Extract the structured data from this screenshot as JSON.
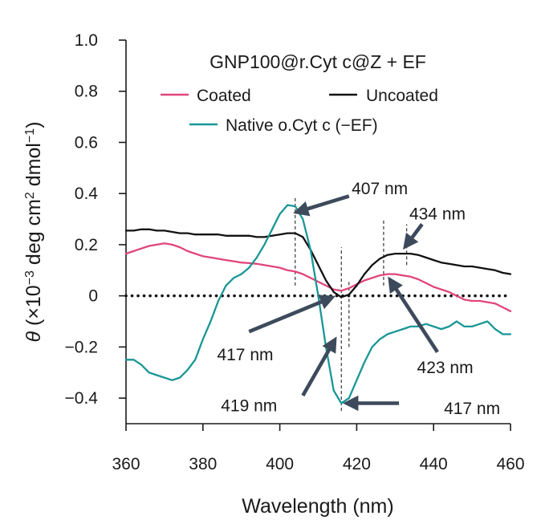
{
  "chart_data": {
    "type": "line",
    "title": "GNP100@r.Cyt c@Z + EF",
    "xlabel": "Wavelength (nm)",
    "ylabel": "θ (×10−3 deg cm2 dmol−1)",
    "ylabel_parts": {
      "theta": "θ",
      "pre": " (×10",
      "exp1": "−3",
      "mid": " deg cm",
      "exp2": "2",
      "post": " dmol",
      "exp3": "−1",
      "close": ")"
    },
    "xlim": [
      360,
      460
    ],
    "ylim": [
      -0.5,
      1.0
    ],
    "xticks": [
      {
        "value": 360,
        "label": "360"
      },
      {
        "value": 380,
        "label": "380"
      },
      {
        "value": 400,
        "label": "400"
      },
      {
        "value": 420,
        "label": "420"
      },
      {
        "value": 440,
        "label": "440"
      },
      {
        "value": 460,
        "label": "460"
      }
    ],
    "yticks": [
      {
        "value": 1.0,
        "label": "1.0"
      },
      {
        "value": 0.8,
        "label": "0.8"
      },
      {
        "value": 0.6,
        "label": "0.6"
      },
      {
        "value": 0.4,
        "label": "0.4"
      },
      {
        "value": 0.2,
        "label": "0.2"
      },
      {
        "value": 0,
        "label": "0"
      },
      {
        "value": -0.2,
        "label": "−0.2"
      },
      {
        "value": -0.4,
        "label": "−0.4"
      }
    ],
    "zero_line": true,
    "series": [
      {
        "name": "Coated",
        "color": "#e0457b",
        "x": [
          360,
          362,
          364,
          366,
          368,
          370,
          372,
          374,
          376,
          378,
          380,
          382,
          384,
          386,
          388,
          390,
          392,
          394,
          396,
          398,
          400,
          402,
          404,
          406,
          408,
          410,
          412,
          414,
          416,
          418,
          420,
          422,
          424,
          426,
          428,
          430,
          432,
          434,
          436,
          438,
          440,
          442,
          444,
          446,
          448,
          450,
          452,
          454,
          456,
          458,
          460
        ],
        "y": [
          0.165,
          0.175,
          0.185,
          0.195,
          0.2,
          0.205,
          0.2,
          0.19,
          0.175,
          0.165,
          0.155,
          0.15,
          0.145,
          0.14,
          0.135,
          0.13,
          0.128,
          0.125,
          0.12,
          0.115,
          0.11,
          0.1,
          0.095,
          0.085,
          0.07,
          0.055,
          0.04,
          0.025,
          0.02,
          0.03,
          0.045,
          0.06,
          0.07,
          0.08,
          0.085,
          0.085,
          0.08,
          0.075,
          0.065,
          0.05,
          0.035,
          0.025,
          0.015,
          0.0,
          -0.015,
          -0.02,
          -0.02,
          -0.025,
          -0.03,
          -0.045,
          -0.06
        ]
      },
      {
        "name": "Uncoated",
        "color": "#111111",
        "x": [
          360,
          362,
          364,
          366,
          368,
          370,
          372,
          374,
          376,
          378,
          380,
          382,
          384,
          386,
          388,
          390,
          392,
          394,
          396,
          398,
          400,
          402,
          404,
          406,
          408,
          410,
          412,
          414,
          416,
          418,
          420,
          422,
          424,
          426,
          428,
          430,
          432,
          434,
          436,
          438,
          440,
          442,
          444,
          446,
          448,
          450,
          452,
          454,
          456,
          458,
          460
        ],
        "y": [
          0.255,
          0.255,
          0.26,
          0.26,
          0.255,
          0.255,
          0.25,
          0.245,
          0.245,
          0.24,
          0.24,
          0.24,
          0.24,
          0.235,
          0.235,
          0.235,
          0.235,
          0.23,
          0.23,
          0.235,
          0.24,
          0.245,
          0.245,
          0.23,
          0.18,
          0.12,
          0.06,
          0.015,
          -0.005,
          0.005,
          0.04,
          0.085,
          0.12,
          0.145,
          0.16,
          0.165,
          0.165,
          0.165,
          0.16,
          0.15,
          0.14,
          0.13,
          0.125,
          0.12,
          0.115,
          0.115,
          0.11,
          0.105,
          0.1,
          0.09,
          0.085
        ]
      },
      {
        "name": "Native o.Cyt c (−EF)",
        "color": "#1a9696",
        "x": [
          360,
          362,
          364,
          366,
          368,
          370,
          372,
          374,
          376,
          378,
          380,
          382,
          384,
          386,
          388,
          390,
          392,
          394,
          396,
          398,
          400,
          402,
          404,
          406,
          408,
          410,
          412,
          414,
          416,
          418,
          420,
          422,
          424,
          426,
          428,
          430,
          432,
          434,
          436,
          438,
          440,
          442,
          444,
          446,
          448,
          450,
          452,
          454,
          456,
          458,
          460
        ],
        "y": [
          -0.25,
          -0.25,
          -0.27,
          -0.3,
          -0.31,
          -0.32,
          -0.33,
          -0.32,
          -0.29,
          -0.25,
          -0.17,
          -0.1,
          -0.02,
          0.04,
          0.07,
          0.085,
          0.11,
          0.15,
          0.2,
          0.26,
          0.32,
          0.355,
          0.35,
          0.3,
          0.18,
          0.0,
          -0.2,
          -0.37,
          -0.42,
          -0.4,
          -0.33,
          -0.26,
          -0.2,
          -0.17,
          -0.15,
          -0.14,
          -0.13,
          -0.12,
          -0.12,
          -0.11,
          -0.12,
          -0.13,
          -0.12,
          -0.1,
          -0.12,
          -0.12,
          -0.11,
          -0.1,
          -0.13,
          -0.15,
          -0.15
        ]
      }
    ],
    "legend": {
      "placement": "top",
      "entries": [
        "Coated",
        "Uncoated",
        "Native o.Cyt c (−EF)"
      ]
    },
    "vlines": [
      {
        "x": 404,
        "y0": 0.04,
        "y1": 0.39
      },
      {
        "x": 416,
        "y0": -0.45,
        "y1": 0.19
      },
      {
        "x": 418,
        "y0": -0.2,
        "y1": 0.06
      },
      {
        "x": 427,
        "y0": 0.04,
        "y1": 0.3
      },
      {
        "x": 433,
        "y0": 0.12,
        "y1": 0.28
      }
    ],
    "annotations": [
      {
        "text": "407 nm",
        "text_x": 426,
        "text_y": 0.42,
        "arrow_from": [
          418,
          0.39
        ],
        "arrow_to": [
          405,
          0.33
        ],
        "anchor": "middle"
      },
      {
        "text": "434 nm",
        "text_x": 441,
        "text_y": 0.32,
        "arrow_from": [
          437,
          0.28
        ],
        "arrow_to": [
          433,
          0.2
        ],
        "anchor": "middle"
      },
      {
        "text": "417 nm",
        "text_x": 391,
        "text_y": -0.23,
        "arrow_from": [
          392,
          -0.14
        ],
        "arrow_to": [
          413,
          -0.01
        ],
        "anchor": "middle"
      },
      {
        "text": "419 nm",
        "text_x": 392,
        "text_y": -0.43,
        "arrow_from": [
          406,
          -0.39
        ],
        "arrow_to": [
          414,
          -0.18
        ],
        "anchor": "middle"
      },
      {
        "text": "423 nm",
        "text_x": 443,
        "text_y": -0.28,
        "arrow_from": [
          441,
          -0.22
        ],
        "arrow_to": [
          429,
          0.055
        ],
        "anchor": "middle"
      },
      {
        "text": "417 nm",
        "text_x": 450,
        "text_y": -0.44,
        "arrow_from": [
          431,
          -0.42
        ],
        "arrow_to": [
          418,
          -0.42
        ],
        "anchor": "middle"
      }
    ]
  }
}
